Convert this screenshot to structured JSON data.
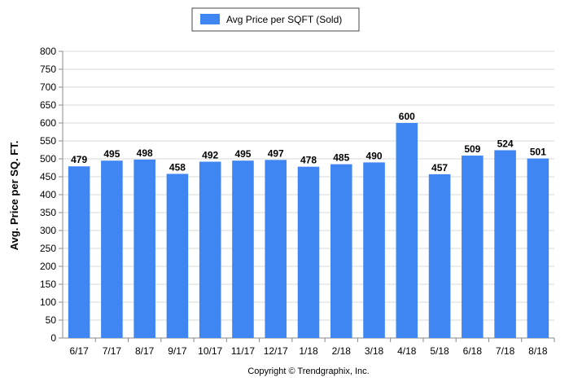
{
  "legend": {
    "label": "Avg Price per SQFT (Sold)",
    "color": "#3f86f3"
  },
  "footer": {
    "copyright": "Copyright © Trendgraphix, Inc."
  },
  "chart_data": {
    "type": "bar",
    "title": "",
    "xlabel": "",
    "ylabel": "Avg. Price per SQ. FT.",
    "ylim": [
      0,
      800
    ],
    "ytick_step": 50,
    "grid": true,
    "legend_position": "top-center",
    "categories": [
      "6/17",
      "7/17",
      "8/17",
      "9/17",
      "10/17",
      "11/17",
      "12/17",
      "1/18",
      "2/18",
      "3/18",
      "4/18",
      "5/18",
      "6/18",
      "7/18",
      "8/18"
    ],
    "series": [
      {
        "name": "Avg Price per SQFT (Sold)",
        "color": "#3f86f3",
        "values": [
          479,
          495,
          498,
          458,
          492,
          495,
          497,
          478,
          485,
          490,
          600,
          457,
          509,
          524,
          501
        ]
      }
    ]
  }
}
